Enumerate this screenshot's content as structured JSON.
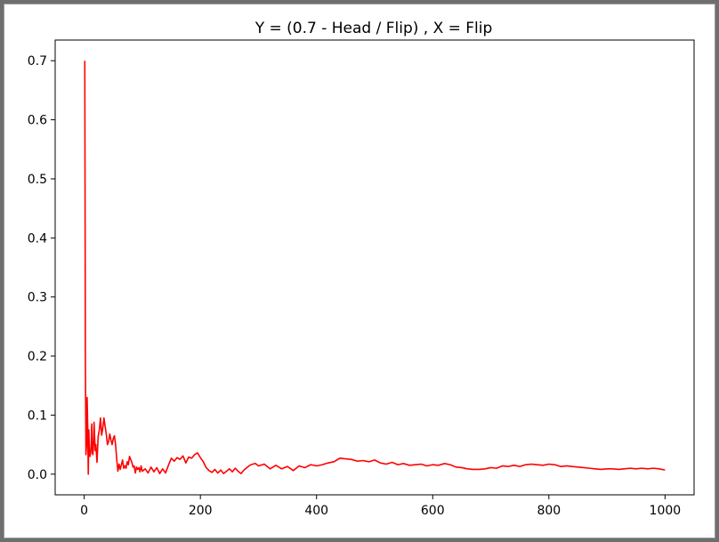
{
  "chart_data": {
    "type": "line",
    "title": "Y = (0.7 - Head / Flip) , X = Flip",
    "xlabel": "",
    "ylabel": "",
    "xlim": [
      -50,
      1050
    ],
    "ylim": [
      -0.035,
      0.735
    ],
    "x_ticks": [
      0,
      200,
      400,
      600,
      800,
      1000
    ],
    "x_tick_labels": [
      "0",
      "200",
      "400",
      "600",
      "800",
      "1000"
    ],
    "y_ticks": [
      0.0,
      0.1,
      0.2,
      0.3,
      0.4,
      0.5,
      0.6,
      0.7
    ],
    "y_tick_labels": [
      "0.0",
      "0.1",
      "0.2",
      "0.3",
      "0.4",
      "0.5",
      "0.6",
      "0.7"
    ],
    "grid": false,
    "series": [
      {
        "color": "#ff0000",
        "x": [
          1,
          2,
          3,
          4,
          5,
          6,
          7,
          8,
          9,
          10,
          11,
          12,
          13,
          14,
          15,
          16,
          17,
          18,
          19,
          20,
          22,
          24,
          26,
          28,
          30,
          32,
          34,
          36,
          38,
          40,
          42,
          44,
          46,
          48,
          50,
          52,
          54,
          56,
          58,
          60,
          62,
          64,
          66,
          68,
          70,
          72,
          74,
          76,
          78,
          80,
          82,
          84,
          86,
          88,
          90,
          92,
          94,
          96,
          98,
          100,
          105,
          110,
          115,
          120,
          125,
          130,
          135,
          140,
          145,
          150,
          155,
          160,
          165,
          170,
          175,
          180,
          185,
          190,
          195,
          200,
          205,
          210,
          215,
          220,
          225,
          230,
          235,
          240,
          245,
          250,
          255,
          260,
          265,
          270,
          275,
          280,
          285,
          290,
          295,
          300,
          310,
          320,
          330,
          340,
          350,
          360,
          370,
          380,
          390,
          400,
          410,
          420,
          430,
          440,
          450,
          460,
          470,
          480,
          490,
          500,
          510,
          520,
          530,
          540,
          550,
          560,
          570,
          580,
          590,
          600,
          610,
          620,
          630,
          640,
          650,
          660,
          670,
          680,
          690,
          700,
          710,
          720,
          730,
          740,
          750,
          760,
          770,
          780,
          790,
          800,
          810,
          820,
          830,
          840,
          850,
          860,
          870,
          880,
          890,
          900,
          910,
          920,
          930,
          940,
          950,
          960,
          970,
          980,
          990,
          1000
        ],
        "y": [
          0.7,
          0.2,
          0.033,
          0.05,
          0.13,
          0.083,
          0.0,
          0.075,
          0.033,
          0.03,
          0.036,
          0.05,
          0.085,
          0.036,
          0.033,
          0.05,
          0.088,
          0.061,
          0.04,
          0.05,
          0.02,
          0.064,
          0.075,
          0.095,
          0.066,
          0.078,
          0.095,
          0.081,
          0.068,
          0.05,
          0.055,
          0.068,
          0.058,
          0.05,
          0.06,
          0.065,
          0.05,
          0.025,
          0.005,
          0.017,
          0.008,
          0.016,
          0.024,
          0.01,
          0.014,
          0.01,
          0.021,
          0.016,
          0.03,
          0.025,
          0.02,
          0.012,
          0.014,
          0.002,
          0.012,
          0.008,
          0.011,
          0.004,
          0.014,
          0.005,
          0.009,
          0.002,
          0.012,
          0.004,
          0.011,
          0.001,
          0.009,
          0.002,
          0.015,
          0.027,
          0.022,
          0.028,
          0.025,
          0.031,
          0.019,
          0.029,
          0.027,
          0.033,
          0.036,
          0.028,
          0.021,
          0.011,
          0.006,
          0.003,
          0.008,
          0.002,
          0.007,
          0.001,
          0.005,
          0.009,
          0.004,
          0.01,
          0.005,
          0.001,
          0.007,
          0.011,
          0.015,
          0.017,
          0.018,
          0.014,
          0.017,
          0.009,
          0.015,
          0.009,
          0.013,
          0.006,
          0.014,
          0.011,
          0.016,
          0.014,
          0.016,
          0.019,
          0.021,
          0.027,
          0.026,
          0.025,
          0.022,
          0.023,
          0.021,
          0.024,
          0.019,
          0.017,
          0.02,
          0.016,
          0.018,
          0.015,
          0.016,
          0.017,
          0.014,
          0.016,
          0.015,
          0.018,
          0.016,
          0.012,
          0.011,
          0.009,
          0.008,
          0.008,
          0.009,
          0.011,
          0.01,
          0.014,
          0.013,
          0.015,
          0.013,
          0.016,
          0.017,
          0.016,
          0.015,
          0.017,
          0.016,
          0.013,
          0.014,
          0.013,
          0.012,
          0.011,
          0.01,
          0.009,
          0.008,
          0.009,
          0.009,
          0.008,
          0.009,
          0.01,
          0.009,
          0.01,
          0.009,
          0.01,
          0.009,
          0.007
        ]
      }
    ]
  }
}
